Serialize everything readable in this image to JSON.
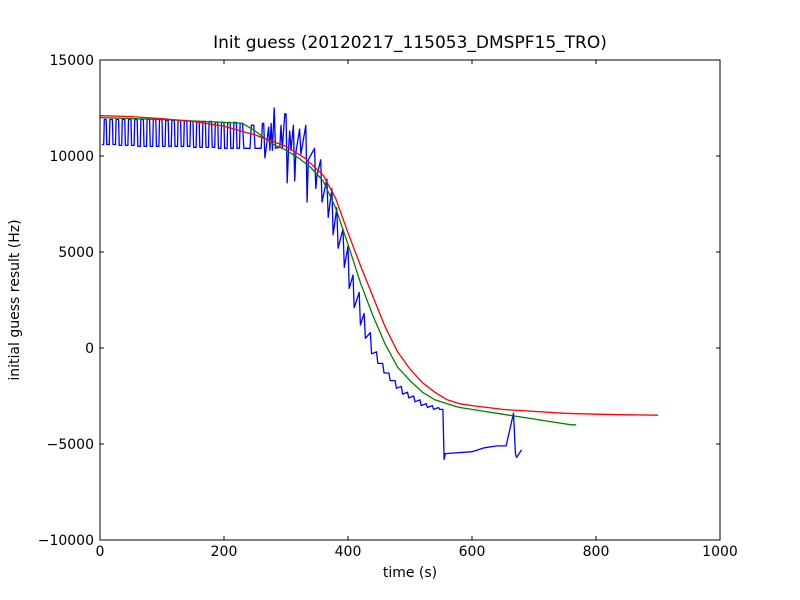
{
  "chart_data": {
    "type": "line",
    "title": "Init guess (20120217_115053_DMSPF15_TRO)",
    "xlabel": "time (s)",
    "ylabel": "initial guess result (Hz)",
    "xlim": [
      0,
      1000
    ],
    "ylim": [
      -10000,
      15000
    ],
    "x_ticks": [
      0,
      200,
      400,
      600,
      800,
      1000
    ],
    "x_tick_labels": [
      "0",
      "200",
      "400",
      "600",
      "800",
      "1000"
    ],
    "y_ticks": [
      -10000,
      -5000,
      0,
      5000,
      10000,
      15000
    ],
    "y_tick_labels": [
      "−10000",
      "−5000",
      "0",
      "5000",
      "10000",
      "15000"
    ],
    "grid": false,
    "legend": "none",
    "series": [
      {
        "color": "#0000ff",
        "points": [
          [
            3,
            10600
          ],
          [
            6,
            10600
          ],
          [
            7,
            11900
          ],
          [
            10,
            11900
          ],
          [
            11,
            10600
          ],
          [
            15,
            10600
          ],
          [
            16,
            11900
          ],
          [
            20,
            11900
          ],
          [
            21,
            10600
          ],
          [
            25,
            10600
          ],
          [
            26,
            11900
          ],
          [
            30,
            11900
          ],
          [
            31,
            10550
          ],
          [
            35,
            10550
          ],
          [
            36,
            11900
          ],
          [
            40,
            11900
          ],
          [
            41,
            10550
          ],
          [
            45,
            10550
          ],
          [
            46,
            11900
          ],
          [
            50,
            11900
          ],
          [
            51,
            10550
          ],
          [
            55,
            10550
          ],
          [
            56,
            11900
          ],
          [
            60,
            11900
          ],
          [
            61,
            10500
          ],
          [
            65,
            10500
          ],
          [
            66,
            11900
          ],
          [
            70,
            11900
          ],
          [
            71,
            10500
          ],
          [
            75,
            10500
          ],
          [
            76,
            11900
          ],
          [
            80,
            11900
          ],
          [
            81,
            10500
          ],
          [
            85,
            10500
          ],
          [
            86,
            11900
          ],
          [
            90,
            11900
          ],
          [
            91,
            10500
          ],
          [
            95,
            10500
          ],
          [
            96,
            11900
          ],
          [
            100,
            11900
          ],
          [
            101,
            10500
          ],
          [
            105,
            10500
          ],
          [
            106,
            11850
          ],
          [
            110,
            11850
          ],
          [
            111,
            10500
          ],
          [
            115,
            10500
          ],
          [
            116,
            11850
          ],
          [
            120,
            11850
          ],
          [
            121,
            10500
          ],
          [
            125,
            10500
          ],
          [
            126,
            11850
          ],
          [
            130,
            11850
          ],
          [
            131,
            10500
          ],
          [
            135,
            10500
          ],
          [
            136,
            11850
          ],
          [
            140,
            11850
          ],
          [
            141,
            10500
          ],
          [
            145,
            10500
          ],
          [
            146,
            11800
          ],
          [
            150,
            11800
          ],
          [
            151,
            10450
          ],
          [
            155,
            10450
          ],
          [
            156,
            11800
          ],
          [
            160,
            11800
          ],
          [
            161,
            10450
          ],
          [
            165,
            10450
          ],
          [
            166,
            11800
          ],
          [
            170,
            11800
          ],
          [
            171,
            10450
          ],
          [
            175,
            10450
          ],
          [
            176,
            11800
          ],
          [
            180,
            11800
          ],
          [
            181,
            10450
          ],
          [
            185,
            10450
          ],
          [
            186,
            11750
          ],
          [
            190,
            11750
          ],
          [
            191,
            10400
          ],
          [
            195,
            10400
          ],
          [
            196,
            11750
          ],
          [
            200,
            11750
          ],
          [
            201,
            10400
          ],
          [
            205,
            10400
          ],
          [
            206,
            11750
          ],
          [
            210,
            11750
          ],
          [
            211,
            10400
          ],
          [
            215,
            10400
          ],
          [
            216,
            11750
          ],
          [
            220,
            11750
          ],
          [
            221,
            10400
          ],
          [
            225,
            10400
          ],
          [
            226,
            11700
          ],
          [
            230,
            11700
          ],
          [
            232,
            10400
          ],
          [
            242,
            10400
          ],
          [
            244,
            11600
          ],
          [
            248,
            11600
          ],
          [
            250,
            10400
          ],
          [
            260,
            10400
          ],
          [
            262,
            11700
          ],
          [
            264,
            11700
          ],
          [
            266,
            9900
          ],
          [
            268,
            10400
          ],
          [
            272,
            11500
          ],
          [
            274,
            10300
          ],
          [
            276,
            11700
          ],
          [
            278,
            10300
          ],
          [
            281,
            12500
          ],
          [
            283,
            10400
          ],
          [
            290,
            10450
          ],
          [
            292,
            11600
          ],
          [
            294,
            10400
          ],
          [
            298,
            12200
          ],
          [
            300,
            12200
          ],
          [
            302,
            8600
          ],
          [
            304,
            10300
          ],
          [
            306,
            11300
          ],
          [
            308,
            10300
          ],
          [
            312,
            11600
          ],
          [
            314,
            8700
          ],
          [
            316,
            10200
          ],
          [
            322,
            11400
          ],
          [
            324,
            10100
          ],
          [
            332,
            11600
          ],
          [
            334,
            7600
          ],
          [
            336,
            9800
          ],
          [
            346,
            10400
          ],
          [
            348,
            8300
          ],
          [
            350,
            9000
          ],
          [
            356,
            9800
          ],
          [
            358,
            7600
          ],
          [
            366,
            8800
          ],
          [
            368,
            6800
          ],
          [
            374,
            8300
          ],
          [
            376,
            5900
          ],
          [
            382,
            7300
          ],
          [
            384,
            5200
          ],
          [
            392,
            6200
          ],
          [
            394,
            4200
          ],
          [
            400,
            5300
          ],
          [
            402,
            3100
          ],
          [
            408,
            3800
          ],
          [
            410,
            2100
          ],
          [
            418,
            2900
          ],
          [
            420,
            1200
          ],
          [
            426,
            1800
          ],
          [
            428,
            500
          ],
          [
            436,
            800
          ],
          [
            438,
            -300
          ],
          [
            446,
            -200
          ],
          [
            448,
            -800
          ],
          [
            456,
            -800
          ],
          [
            458,
            -1300
          ],
          [
            466,
            -1300
          ],
          [
            468,
            -1700
          ],
          [
            476,
            -1700
          ],
          [
            478,
            -2100
          ],
          [
            486,
            -2000
          ],
          [
            488,
            -2400
          ],
          [
            496,
            -2300
          ],
          [
            498,
            -2600
          ],
          [
            506,
            -2500
          ],
          [
            508,
            -2800
          ],
          [
            516,
            -2700
          ],
          [
            518,
            -3000
          ],
          [
            526,
            -2900
          ],
          [
            528,
            -3100
          ],
          [
            536,
            -3000
          ],
          [
            538,
            -3200
          ],
          [
            546,
            -3100
          ],
          [
            548,
            -3200
          ],
          [
            553,
            -3200
          ],
          [
            555,
            -5800
          ],
          [
            557,
            -5500
          ],
          [
            600,
            -5400
          ],
          [
            620,
            -5200
          ],
          [
            640,
            -5100
          ],
          [
            655,
            -5100
          ],
          [
            667,
            -3400
          ],
          [
            670,
            -5500
          ],
          [
            672,
            -5700
          ],
          [
            680,
            -5300
          ]
        ]
      },
      {
        "color": "#008000",
        "points": [
          [
            0,
            12000
          ],
          [
            100,
            11900
          ],
          [
            200,
            11750
          ],
          [
            230,
            11700
          ],
          [
            250,
            11300
          ],
          [
            280,
            10600
          ],
          [
            300,
            10300
          ],
          [
            320,
            9900
          ],
          [
            340,
            9400
          ],
          [
            360,
            8700
          ],
          [
            380,
            7300
          ],
          [
            400,
            5400
          ],
          [
            420,
            3400
          ],
          [
            440,
            1700
          ],
          [
            460,
            200
          ],
          [
            480,
            -1000
          ],
          [
            500,
            -1700
          ],
          [
            520,
            -2300
          ],
          [
            540,
            -2700
          ],
          [
            560,
            -2900
          ],
          [
            580,
            -3100
          ],
          [
            600,
            -3200
          ],
          [
            620,
            -3300
          ],
          [
            640,
            -3400
          ],
          [
            660,
            -3500
          ],
          [
            680,
            -3600
          ],
          [
            700,
            -3700
          ],
          [
            720,
            -3800
          ],
          [
            740,
            -3900
          ],
          [
            760,
            -4000
          ],
          [
            768,
            -4000
          ]
        ]
      },
      {
        "color": "#ff0000",
        "points": [
          [
            0,
            12100
          ],
          [
            50,
            12050
          ],
          [
            100,
            11950
          ],
          [
            150,
            11800
          ],
          [
            200,
            11550
          ],
          [
            250,
            11100
          ],
          [
            300,
            10500
          ],
          [
            330,
            9900
          ],
          [
            360,
            9000
          ],
          [
            380,
            7800
          ],
          [
            400,
            6000
          ],
          [
            420,
            4300
          ],
          [
            440,
            2700
          ],
          [
            460,
            1100
          ],
          [
            480,
            -200
          ],
          [
            500,
            -1100
          ],
          [
            520,
            -1800
          ],
          [
            540,
            -2300
          ],
          [
            560,
            -2700
          ],
          [
            580,
            -2900
          ],
          [
            600,
            -3000
          ],
          [
            650,
            -3200
          ],
          [
            700,
            -3300
          ],
          [
            750,
            -3400
          ],
          [
            800,
            -3450
          ],
          [
            850,
            -3480
          ],
          [
            900,
            -3500
          ]
        ]
      }
    ]
  }
}
